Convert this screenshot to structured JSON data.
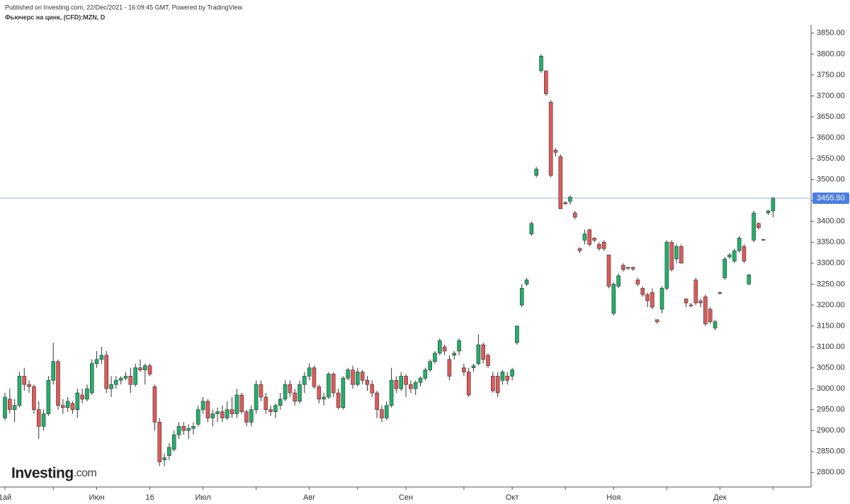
{
  "chart_data": {
    "type": "candlestick",
    "published": "Published on Investing.com, 22/Dec/2021 - 16:09:45 GMT, Powered by TradingView.",
    "title": "Фьючерс на цинк, (CFD):MZN, D",
    "logo_main": "Investing",
    "logo_suffix": ".com",
    "up_color": "#22b06a",
    "down_color": "#e05a59",
    "ylim": [
      2765,
      3870
    ],
    "yticks": [
      {
        "value": 2800,
        "label": "2800.00"
      },
      {
        "value": 2850,
        "label": "2850.00"
      },
      {
        "value": 2900,
        "label": "2900.00"
      },
      {
        "value": 2950,
        "label": "2950.00"
      },
      {
        "value": 3000,
        "label": "3000.00"
      },
      {
        "value": 3050,
        "label": "3050.00"
      },
      {
        "value": 3100,
        "label": "3100.00"
      },
      {
        "value": 3150,
        "label": "3150.00"
      },
      {
        "value": 3200,
        "label": "3200.00"
      },
      {
        "value": 3250,
        "label": "3250.00"
      },
      {
        "value": 3300,
        "label": "3300.00"
      },
      {
        "value": 3350,
        "label": "3350.00"
      },
      {
        "value": 3400,
        "label": "3400.00"
      },
      {
        "value": 3450,
        "label": "3450.00"
      },
      {
        "value": 3500,
        "label": "3500.00"
      },
      {
        "value": 3550,
        "label": "3550.00"
      },
      {
        "value": 3600,
        "label": "3600.00"
      },
      {
        "value": 3650,
        "label": "3650.00"
      },
      {
        "value": 3700,
        "label": "3700.00"
      },
      {
        "value": 3750,
        "label": "3750.00"
      },
      {
        "value": 3800,
        "label": "3800.00"
      },
      {
        "value": 3850,
        "label": "3850.00"
      }
    ],
    "last_price": {
      "value": 3455.5,
      "label": "3455.50"
    },
    "xticks": [
      {
        "value": 0,
        "label": "1ай"
      },
      {
        "value": 19,
        "label": "Июн"
      },
      {
        "value": 30,
        "label": "16"
      },
      {
        "value": 41,
        "label": "Июл"
      },
      {
        "value": 63,
        "label": "Авг"
      },
      {
        "value": 83,
        "label": "Сен"
      },
      {
        "value": 105,
        "label": "Окт"
      },
      {
        "value": 126,
        "label": "Ноя"
      },
      {
        "value": 148,
        "label": "Дек"
      }
    ],
    "xminorticks": [
      10,
      52,
      73,
      95,
      116,
      137,
      159
    ],
    "candles": [
      {
        "open": 2930,
        "high": 2990,
        "low": 2925,
        "close": 2980
      },
      {
        "open": 2975,
        "high": 3000,
        "low": 2940,
        "close": 2950
      },
      {
        "open": 2950,
        "high": 2975,
        "low": 2920,
        "close": 2960
      },
      {
        "open": 2960,
        "high": 3040,
        "low": 2955,
        "close": 3030
      },
      {
        "open": 3030,
        "high": 3050,
        "low": 2995,
        "close": 3010
      },
      {
        "open": 3010,
        "high": 3020,
        "low": 2990,
        "close": 3005
      },
      {
        "open": 3005,
        "high": 3010,
        "low": 2940,
        "close": 2950
      },
      {
        "open": 2950,
        "high": 2970,
        "low": 2880,
        "close": 2910
      },
      {
        "open": 2910,
        "high": 2950,
        "low": 2900,
        "close": 2940
      },
      {
        "open": 2940,
        "high": 3030,
        "low": 2935,
        "close": 3020
      },
      {
        "open": 3020,
        "high": 3110,
        "low": 3010,
        "close": 3065
      },
      {
        "open": 3065,
        "high": 3070,
        "low": 2950,
        "close": 2960
      },
      {
        "open": 2960,
        "high": 2975,
        "low": 2940,
        "close": 2955
      },
      {
        "open": 2955,
        "high": 2980,
        "low": 2945,
        "close": 2970
      },
      {
        "open": 2965,
        "high": 2970,
        "low": 2940,
        "close": 2950
      },
      {
        "open": 2950,
        "high": 3000,
        "low": 2930,
        "close": 2990
      },
      {
        "open": 2985,
        "high": 3000,
        "low": 2965,
        "close": 2975
      },
      {
        "open": 2975,
        "high": 3010,
        "low": 2970,
        "close": 3000
      },
      {
        "open": 2990,
        "high": 3070,
        "low": 2985,
        "close": 3060
      },
      {
        "open": 3060,
        "high": 3090,
        "low": 3050,
        "close": 3070
      },
      {
        "open": 3070,
        "high": 3100,
        "low": 3060,
        "close": 3080
      },
      {
        "open": 3080,
        "high": 3090,
        "low": 2990,
        "close": 3000
      },
      {
        "open": 3000,
        "high": 3030,
        "low": 2980,
        "close": 3010
      },
      {
        "open": 3010,
        "high": 3030,
        "low": 3000,
        "close": 3020
      },
      {
        "open": 3020,
        "high": 3030,
        "low": 3010,
        "close": 3025
      },
      {
        "open": 3025,
        "high": 3040,
        "low": 3020,
        "close": 3030
      },
      {
        "open": 3030,
        "high": 3050,
        "low": 2990,
        "close": 3010
      },
      {
        "open": 3010,
        "high": 3060,
        "low": 3005,
        "close": 3050
      },
      {
        "open": 3050,
        "high": 3070,
        "low": 3040,
        "close": 3045
      },
      {
        "open": 3045,
        "high": 3060,
        "low": 3010,
        "close": 3055
      },
      {
        "open": 3055,
        "high": 3060,
        "low": 3030,
        "close": 3035
      },
      {
        "open": 3005,
        "high": 3010,
        "low": 2900,
        "close": 2920
      },
      {
        "open": 2920,
        "high": 2930,
        "low": 2815,
        "close": 2825
      },
      {
        "open": 2830,
        "high": 2845,
        "low": 2815,
        "close": 2835
      },
      {
        "open": 2840,
        "high": 2870,
        "low": 2830,
        "close": 2860
      },
      {
        "open": 2855,
        "high": 2900,
        "low": 2850,
        "close": 2890
      },
      {
        "open": 2890,
        "high": 2920,
        "low": 2880,
        "close": 2910
      },
      {
        "open": 2910,
        "high": 2920,
        "low": 2890,
        "close": 2900
      },
      {
        "open": 2900,
        "high": 2915,
        "low": 2880,
        "close": 2905
      },
      {
        "open": 2905,
        "high": 2920,
        "low": 2890,
        "close": 2910
      },
      {
        "open": 2915,
        "high": 2960,
        "low": 2910,
        "close": 2950
      },
      {
        "open": 2950,
        "high": 2980,
        "low": 2940,
        "close": 2970
      },
      {
        "open": 2970,
        "high": 2975,
        "low": 2920,
        "close": 2930
      },
      {
        "open": 2930,
        "high": 2950,
        "low": 2910,
        "close": 2940
      },
      {
        "open": 2940,
        "high": 2955,
        "low": 2920,
        "close": 2945
      },
      {
        "open": 2945,
        "high": 2960,
        "low": 2920,
        "close": 2930
      },
      {
        "open": 2930,
        "high": 2970,
        "low": 2925,
        "close": 2950
      },
      {
        "open": 2950,
        "high": 2980,
        "low": 2930,
        "close": 2940
      },
      {
        "open": 2940,
        "high": 3000,
        "low": 2930,
        "close": 2985
      },
      {
        "open": 2985,
        "high": 2990,
        "low": 2940,
        "close": 2945
      },
      {
        "open": 2945,
        "high": 2950,
        "low": 2910,
        "close": 2920
      },
      {
        "open": 2920,
        "high": 2960,
        "low": 2910,
        "close": 2950
      },
      {
        "open": 2950,
        "high": 3020,
        "low": 2940,
        "close": 3010
      },
      {
        "open": 3010,
        "high": 3020,
        "low": 2970,
        "close": 2980
      },
      {
        "open": 2980,
        "high": 2990,
        "low": 2940,
        "close": 2950
      },
      {
        "open": 2950,
        "high": 2960,
        "low": 2935,
        "close": 2945
      },
      {
        "open": 2945,
        "high": 2965,
        "low": 2930,
        "close": 2960
      },
      {
        "open": 2960,
        "high": 2990,
        "low": 2950,
        "close": 2975
      },
      {
        "open": 2975,
        "high": 3020,
        "low": 2970,
        "close": 3010
      },
      {
        "open": 3010,
        "high": 3020,
        "low": 2980,
        "close": 2990
      },
      {
        "open": 2990,
        "high": 3000,
        "low": 2960,
        "close": 2970
      },
      {
        "open": 2970,
        "high": 3020,
        "low": 2965,
        "close": 3010
      },
      {
        "open": 3010,
        "high": 3040,
        "low": 2990,
        "close": 3030
      },
      {
        "open": 3030,
        "high": 3060,
        "low": 3020,
        "close": 3050
      },
      {
        "open": 3050,
        "high": 3055,
        "low": 3000,
        "close": 3005
      },
      {
        "open": 3005,
        "high": 3010,
        "low": 2965,
        "close": 2975
      },
      {
        "open": 2975,
        "high": 2990,
        "low": 2960,
        "close": 2980
      },
      {
        "open": 2980,
        "high": 3040,
        "low": 2975,
        "close": 3035
      },
      {
        "open": 3035,
        "high": 3040,
        "low": 2980,
        "close": 2990
      },
      {
        "open": 2990,
        "high": 3000,
        "low": 2950,
        "close": 2955
      },
      {
        "open": 2955,
        "high": 3030,
        "low": 2950,
        "close": 3025
      },
      {
        "open": 3025,
        "high": 3050,
        "low": 3020,
        "close": 3045
      },
      {
        "open": 3045,
        "high": 3055,
        "low": 3000,
        "close": 3010
      },
      {
        "open": 3010,
        "high": 3050,
        "low": 3005,
        "close": 3040
      },
      {
        "open": 3040,
        "high": 3045,
        "low": 3010,
        "close": 3020
      },
      {
        "open": 3020,
        "high": 3030,
        "low": 2995,
        "close": 3010
      },
      {
        "open": 3010,
        "high": 3020,
        "low": 2980,
        "close": 2990
      },
      {
        "open": 2990,
        "high": 2995,
        "low": 2930,
        "close": 2950
      },
      {
        "open": 2950,
        "high": 2960,
        "low": 2920,
        "close": 2930
      },
      {
        "open": 2930,
        "high": 2970,
        "low": 2925,
        "close": 2960
      },
      {
        "open": 2960,
        "high": 3050,
        "low": 2955,
        "close": 3020
      },
      {
        "open": 3020,
        "high": 3030,
        "low": 2990,
        "close": 3000
      },
      {
        "open": 3000,
        "high": 3040,
        "low": 2995,
        "close": 3030
      },
      {
        "open": 3030,
        "high": 3035,
        "low": 2980,
        "close": 3010
      },
      {
        "open": 3010,
        "high": 3020,
        "low": 2990,
        "close": 3000
      },
      {
        "open": 3000,
        "high": 3020,
        "low": 2985,
        "close": 3015
      },
      {
        "open": 3015,
        "high": 3030,
        "low": 3005,
        "close": 3025
      },
      {
        "open": 3025,
        "high": 3050,
        "low": 3020,
        "close": 3045
      },
      {
        "open": 3045,
        "high": 3070,
        "low": 3040,
        "close": 3065
      },
      {
        "open": 3065,
        "high": 3090,
        "low": 3060,
        "close": 3085
      },
      {
        "open": 3085,
        "high": 3120,
        "low": 3080,
        "close": 3115
      },
      {
        "open": 3100,
        "high": 3105,
        "low": 3080,
        "close": 3090
      },
      {
        "open": 3070,
        "high": 3080,
        "low": 3020,
        "close": 3030
      },
      {
        "open": 3080,
        "high": 3090,
        "low": 3070,
        "close": 3085
      },
      {
        "open": 3090,
        "high": 3120,
        "low": 3080,
        "close": 3115
      },
      {
        "open": 3050,
        "high": 3060,
        "low": 3030,
        "close": 3040
      },
      {
        "open": 3040,
        "high": 3050,
        "low": 2980,
        "close": 2985
      },
      {
        "open": 3050,
        "high": 3060,
        "low": 3040,
        "close": 3055
      },
      {
        "open": 3060,
        "high": 3130,
        "low": 3055,
        "close": 3105
      },
      {
        "open": 3105,
        "high": 3110,
        "low": 3060,
        "close": 3070
      },
      {
        "open": 3080,
        "high": 3085,
        "low": 3050,
        "close": 3055
      },
      {
        "open": 3030,
        "high": 3040,
        "low": 2990,
        "close": 2995
      },
      {
        "open": 3030,
        "high": 3040,
        "low": 2980,
        "close": 2990
      },
      {
        "open": 3020,
        "high": 3045,
        "low": 3010,
        "close": 3040
      },
      {
        "open": 3030,
        "high": 3040,
        "low": 3010,
        "close": 3020
      },
      {
        "open": 3030,
        "high": 3050,
        "low": 3020,
        "close": 3045
      },
      {
        "open": 3110,
        "high": 3150,
        "low": 3105,
        "close": 3150
      },
      {
        "open": 3200,
        "high": 3250,
        "low": 3195,
        "close": 3240
      },
      {
        "open": 3250,
        "high": 3265,
        "low": 3245,
        "close": 3260
      },
      {
        "open": 3370,
        "high": 3400,
        "low": 3365,
        "close": 3395
      },
      {
        "open": 3510,
        "high": 3530,
        "low": 3505,
        "close": 3525
      },
      {
        "open": 3760,
        "high": 3800,
        "low": 3755,
        "close": 3795
      },
      {
        "open": 3760,
        "high": 3760,
        "low": 3700,
        "close": 3705
      },
      {
        "open": 3685,
        "high": 3690,
        "low": 3505,
        "close": 3510
      },
      {
        "open": 3570,
        "high": 3575,
        "low": 3555,
        "close": 3565
      },
      {
        "open": 3555,
        "high": 3560,
        "low": 3430,
        "close": 3430
      },
      {
        "open": 3445,
        "high": 3448,
        "low": 3440,
        "close": 3442
      },
      {
        "open": 3448,
        "high": 3462,
        "low": 3440,
        "close": 3458
      },
      {
        "open": 3420,
        "high": 3425,
        "low": 3405,
        "close": 3410
      },
      {
        "open": 3335,
        "high": 3338,
        "low": 3325,
        "close": 3330
      },
      {
        "open": 3355,
        "high": 3380,
        "low": 3345,
        "close": 3370
      },
      {
        "open": 3380,
        "high": 3382,
        "low": 3340,
        "close": 3345
      },
      {
        "open": 3360,
        "high": 3362,
        "low": 3350,
        "close": 3355
      },
      {
        "open": 3345,
        "high": 3350,
        "low": 3330,
        "close": 3335
      },
      {
        "open": 3350,
        "high": 3355,
        "low": 3330,
        "close": 3335
      },
      {
        "open": 3320,
        "high": 3320,
        "low": 3240,
        "close": 3245
      },
      {
        "open": 3180,
        "high": 3255,
        "low": 3175,
        "close": 3250
      },
      {
        "open": 3245,
        "high": 3275,
        "low": 3240,
        "close": 3270
      },
      {
        "open": 3295,
        "high": 3300,
        "low": 3280,
        "close": 3285
      },
      {
        "open": 3290,
        "high": 3292,
        "low": 3284,
        "close": 3288
      },
      {
        "open": 3290,
        "high": 3292,
        "low": 3282,
        "close": 3286
      },
      {
        "open": 3260,
        "high": 3265,
        "low": 3245,
        "close": 3250
      },
      {
        "open": 3240,
        "high": 3245,
        "low": 3220,
        "close": 3225
      },
      {
        "open": 3225,
        "high": 3230,
        "low": 3195,
        "close": 3210
      },
      {
        "open": 3230,
        "high": 3240,
        "low": 3190,
        "close": 3195
      },
      {
        "open": 3165,
        "high": 3165,
        "low": 3155,
        "close": 3160
      },
      {
        "open": 3190,
        "high": 3245,
        "low": 3180,
        "close": 3240
      },
      {
        "open": 3240,
        "high": 3355,
        "low": 3235,
        "close": 3350
      },
      {
        "open": 3350,
        "high": 3355,
        "low": 3280,
        "close": 3285
      },
      {
        "open": 3310,
        "high": 3345,
        "low": 3300,
        "close": 3340
      },
      {
        "open": 3340,
        "high": 3345,
        "low": 3300,
        "close": 3300
      },
      {
        "open": 3215,
        "high": 3215,
        "low": 3195,
        "close": 3205
      },
      {
        "open": 3200,
        "high": 3205,
        "low": 3195,
        "close": 3198
      },
      {
        "open": 3260,
        "high": 3265,
        "low": 3200,
        "close": 3205
      },
      {
        "open": 3210,
        "high": 3215,
        "low": 3195,
        "close": 3205
      },
      {
        "open": 3220,
        "high": 3225,
        "low": 3150,
        "close": 3155
      },
      {
        "open": 3190,
        "high": 3195,
        "low": 3155,
        "close": 3160
      },
      {
        "open": 3145,
        "high": 3165,
        "low": 3140,
        "close": 3160
      },
      {
        "open": 3228,
        "high": 3232,
        "low": 3225,
        "close": 3230
      },
      {
        "open": 3265,
        "high": 3315,
        "low": 3260,
        "close": 3310
      },
      {
        "open": 3315,
        "high": 3325,
        "low": 3310,
        "close": 3320
      },
      {
        "open": 3305,
        "high": 3335,
        "low": 3300,
        "close": 3330
      },
      {
        "open": 3330,
        "high": 3365,
        "low": 3325,
        "close": 3360
      },
      {
        "open": 3340,
        "high": 3345,
        "low": 3300,
        "close": 3305
      },
      {
        "open": 3250,
        "high": 3275,
        "low": 3248,
        "close": 3272
      },
      {
        "open": 3355,
        "high": 3425,
        "low": 3350,
        "close": 3420
      },
      {
        "open": 3395,
        "high": 3398,
        "low": 3380,
        "close": 3385
      },
      {
        "open": 3357,
        "high": 3358,
        "low": 3354,
        "close": 3355
      },
      {
        "open": 3420,
        "high": 3428,
        "low": 3415,
        "close": 3425
      },
      {
        "open": 3425,
        "high": 3458,
        "low": 3410,
        "close": 3455.5
      }
    ]
  }
}
